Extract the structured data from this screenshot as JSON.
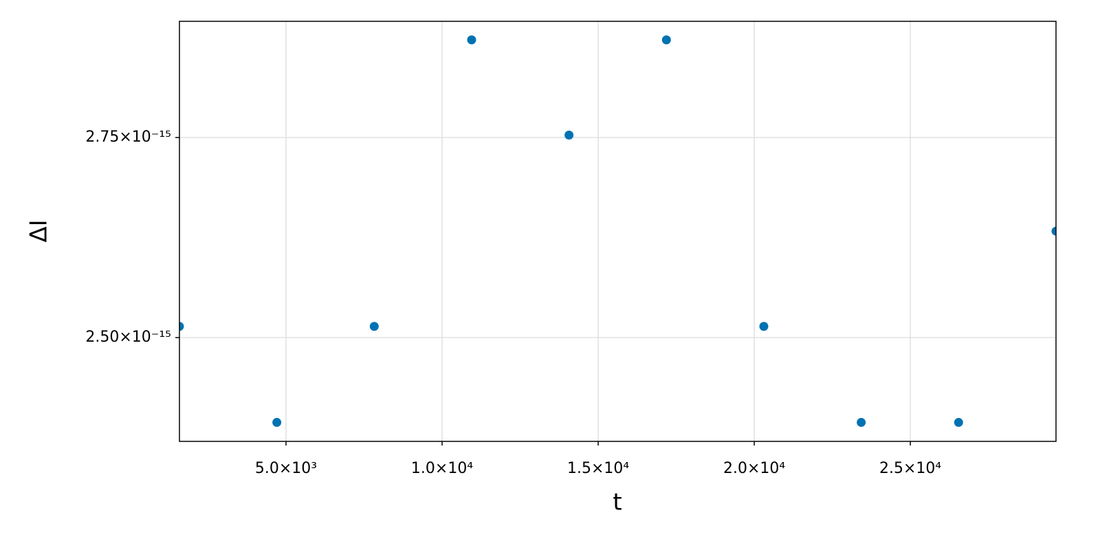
{
  "chart_data": {
    "type": "scatter",
    "x_label": "t",
    "y_label": "ΔI",
    "series": [
      {
        "color": "#0072b2",
        "x": [
          1586,
          4706,
          7826,
          10946,
          14066,
          17186,
          20306,
          23426,
          26546,
          29666
        ],
        "values": [
          2.514e-15,
          2.394e-15,
          2.514e-15,
          2.872e-15,
          2.753e-15,
          2.872e-15,
          2.514e-15,
          2.394e-15,
          2.394e-15,
          2.633e-15
        ]
      }
    ],
    "xlim": [
      1586,
      29666
    ],
    "ylim": [
      2.3703e-15,
      2.8952e-15
    ],
    "xticks": [
      {
        "value": 5000,
        "label": "5.0×10³"
      },
      {
        "value": 10000,
        "label": "1.0×10⁴"
      },
      {
        "value": 15000,
        "label": "1.5×10⁴"
      },
      {
        "value": 20000,
        "label": "2.0×10⁴"
      },
      {
        "value": 25000,
        "label": "2.5×10⁴"
      }
    ],
    "yticks": [
      {
        "value": 2.5e-15,
        "label": "2.50×10⁻¹⁵"
      },
      {
        "value": 2.75e-15,
        "label": "2.75×10⁻¹⁵"
      }
    ],
    "grid": true
  }
}
